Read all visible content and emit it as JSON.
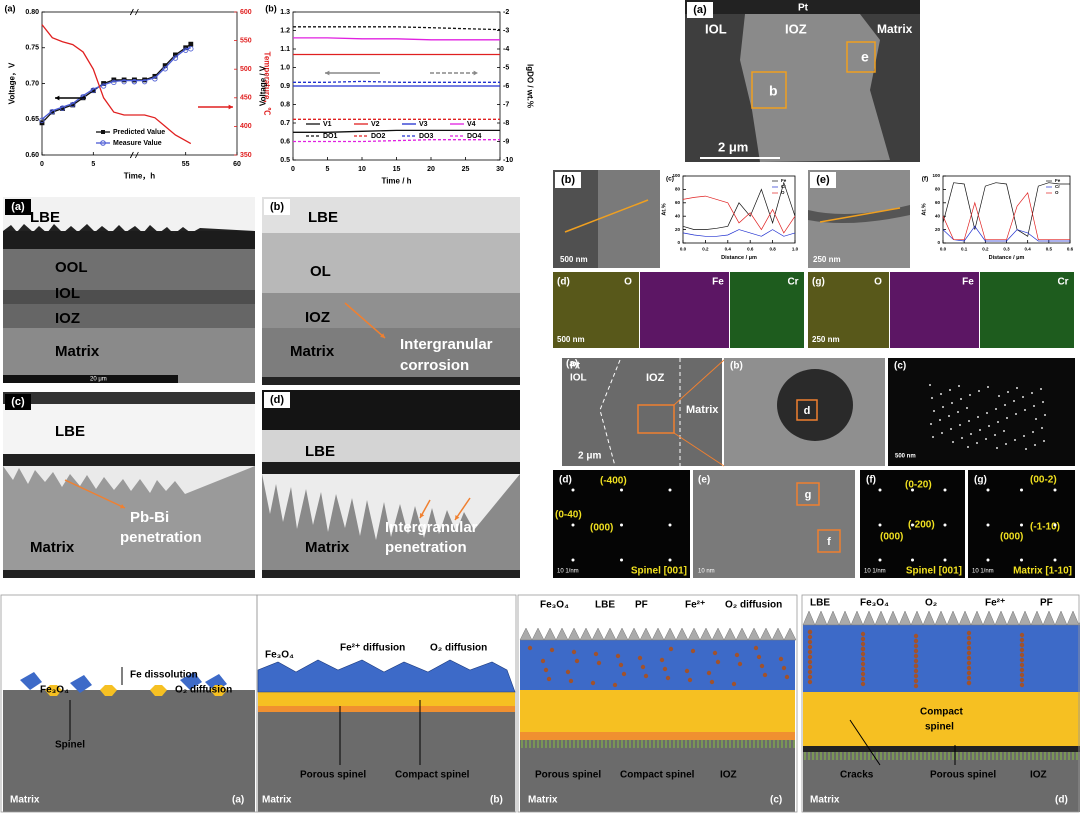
{
  "chart_data": [
    {
      "type": "line",
      "panel": "(a)",
      "xlabel": "Time，h",
      "ylabel": "Voltage，V",
      "y2label": "Temperature，℃",
      "y2color": "#e02020",
      "x": [
        0,
        1,
        2,
        3,
        4,
        5,
        6,
        7,
        8,
        9,
        50,
        51,
        52,
        53,
        54,
        55,
        55.5
      ],
      "xlim": [
        0,
        60
      ],
      "xticks": [
        0,
        5,
        55,
        60
      ],
      "xbreak": [
        9,
        50
      ],
      "ylim": [
        0.6,
        0.8
      ],
      "yticks": [
        {
          "value": 0.6,
          "label": "0.60"
        },
        {
          "value": 0.65,
          "label": "0.65"
        },
        {
          "value": 0.7,
          "label": "0.70"
        },
        {
          "value": 0.75,
          "label": "0.75"
        },
        {
          "value": 0.8,
          "label": "0.80"
        }
      ],
      "y2lim": [
        350,
        600
      ],
      "y2ticks": [
        350,
        400,
        450,
        500,
        550,
        600
      ],
      "series": [
        {
          "name": "Predicted Value",
          "color": "#111111",
          "marker": "square",
          "values": [
            0.645,
            0.66,
            0.665,
            0.67,
            0.68,
            0.69,
            0.7,
            0.705,
            0.705,
            0.705,
            0.705,
            0.705,
            0.71,
            0.725,
            0.74,
            0.75,
            0.755
          ]
        },
        {
          "name": "Measure Value",
          "color": "#4a5bd4",
          "marker": "circle",
          "values": [
            0.65,
            0.662,
            0.667,
            0.672,
            0.683,
            0.692,
            0.698,
            0.703,
            0.704,
            0.704,
            0.704,
            0.704,
            0.708,
            0.722,
            0.737,
            0.748,
            0.75
          ]
        },
        {
          "color": "#e02020",
          "axis": "y2",
          "values": [
            578,
            555,
            548,
            543,
            530,
            500,
            450,
            425,
            420,
            420,
            420,
            420,
            415,
            400,
            385,
            375,
            370
          ]
        }
      ]
    },
    {
      "type": "line",
      "panel": "(b)",
      "xlabel": "Time / h",
      "ylabel": "Voltage / V",
      "y2label": "lgDO / wt.%",
      "x": [
        0,
        5,
        10,
        15,
        20,
        25,
        30
      ],
      "xlim": [
        0,
        30
      ],
      "xticks": [
        0,
        5,
        10,
        15,
        20,
        25,
        30
      ],
      "ylim": [
        0.5,
        1.3
      ],
      "yticks": [
        0.5,
        0.6,
        0.7,
        0.8,
        0.9,
        {
          "value": 1.0,
          "label": "1.0"
        },
        1.1,
        1.2,
        1.3
      ],
      "y2lim": [
        -10,
        -2
      ],
      "y2ticks": [
        -10,
        -9,
        -8,
        -7,
        -6,
        -5,
        -4,
        -3,
        -2
      ],
      "series": [
        {
          "name": "V1",
          "color": "#111111",
          "values": [
            0.65,
            0.65,
            0.655,
            0.66,
            0.66,
            0.66,
            0.66
          ]
        },
        {
          "name": "V2",
          "color": "#e02020",
          "values": [
            1.07,
            1.07,
            1.07,
            1.07,
            1.07,
            1.07,
            1.07
          ]
        },
        {
          "name": "V3",
          "color": "#2030d0",
          "values": [
            0.9,
            0.9,
            0.9,
            0.9,
            0.9,
            0.9,
            0.9
          ]
        },
        {
          "name": "V4",
          "color": "#e020e0",
          "values": [
            1.16,
            1.16,
            1.155,
            1.155,
            1.15,
            1.15,
            1.15
          ]
        },
        {
          "name": "DO1",
          "color": "#111111",
          "dash": true,
          "axis": "y2",
          "values": [
            -2.8,
            -2.8,
            -2.8,
            -2.8,
            -2.85,
            -2.9,
            -2.95
          ]
        },
        {
          "name": "DO2",
          "color": "#e02020",
          "dash": true,
          "axis": "y2",
          "values": [
            -7.8,
            -7.8,
            -7.8,
            -7.8,
            -7.8,
            -7.8,
            -7.8
          ]
        },
        {
          "name": "DO3",
          "color": "#2030d0",
          "dash": true,
          "axis": "y2",
          "values": [
            -5.8,
            -5.8,
            -5.75,
            -5.8,
            -5.8,
            -5.8,
            -5.8
          ]
        },
        {
          "name": "DO4",
          "color": "#e020e0",
          "dash": true,
          "axis": "y2",
          "values": [
            -9.0,
            -9.0,
            -9.0,
            -8.95,
            -8.9,
            -8.9,
            -8.9
          ]
        }
      ]
    },
    {
      "type": "line",
      "panel": "(c)",
      "xlabel": "Distance / μm",
      "ylabel": "At.%",
      "x": [
        0,
        0.1,
        0.2,
        0.3,
        0.4,
        0.5,
        0.6,
        0.7,
        0.8,
        0.9,
        1.0
      ],
      "xlim": [
        0,
        1
      ],
      "xticks": [
        {
          "value": 0,
          "label": "0.0"
        },
        0.2,
        0.4,
        0.6,
        0.8,
        {
          "value": 1,
          "label": "1.0"
        }
      ],
      "ylim": [
        0,
        100
      ],
      "yticks": [
        0,
        20,
        40,
        60,
        80,
        100
      ],
      "series": [
        {
          "name": "Fe",
          "color": "#111111",
          "values": [
            25,
            20,
            20,
            22,
            25,
            60,
            40,
            80,
            30,
            90,
            40
          ]
        },
        {
          "name": "Cr",
          "color": "#2030d0",
          "values": [
            15,
            12,
            10,
            10,
            12,
            20,
            15,
            10,
            20,
            10,
            15
          ]
        },
        {
          "name": "O",
          "color": "#e02020",
          "values": [
            65,
            68,
            70,
            65,
            60,
            30,
            45,
            20,
            50,
            15,
            40
          ]
        }
      ]
    },
    {
      "type": "line",
      "panel": "(f)",
      "xlabel": "Distance / μm",
      "ylabel": "At.%",
      "x": [
        0,
        0.05,
        0.1,
        0.15,
        0.2,
        0.25,
        0.3,
        0.35,
        0.4,
        0.45,
        0.5,
        0.55,
        0.6
      ],
      "xlim": [
        0,
        0.6
      ],
      "xticks": [
        {
          "value": 0,
          "label": "0.0"
        },
        0.1,
        0.2,
        0.3,
        0.4,
        0.5,
        0.6
      ],
      "ylim": [
        0,
        100
      ],
      "yticks": [
        0,
        20,
        40,
        60,
        80,
        100
      ],
      "series": [
        {
          "name": "Fe",
          "color": "#111111",
          "values": [
            30,
            90,
            88,
            20,
            85,
            90,
            88,
            20,
            10,
            85,
            90,
            88,
            88
          ]
        },
        {
          "name": "Cr",
          "color": "#2030d0",
          "values": [
            20,
            5,
            3,
            25,
            3,
            3,
            3,
            20,
            15,
            3,
            3,
            3,
            3
          ]
        },
        {
          "name": "O",
          "color": "#e02020",
          "values": [
            40,
            5,
            5,
            60,
            5,
            5,
            5,
            55,
            75,
            5,
            5,
            5,
            5
          ]
        }
      ]
    }
  ],
  "sem_panels": [
    {
      "tag": "(a)",
      "labels": [
        "LBE",
        "OOL",
        "IOL",
        "IOZ",
        "Matrix"
      ],
      "scale": "20 μm"
    },
    {
      "tag": "(b)",
      "labels": [
        "LBE",
        "OL",
        "IOZ",
        "Matrix",
        "Intergranular",
        "corrosion"
      ]
    },
    {
      "tag": "(c)",
      "labels": [
        "LBE",
        "Pb-Bi",
        "penetration",
        "Matrix"
      ]
    },
    {
      "tag": "(d)",
      "labels": [
        "LBE",
        "Matrix",
        "Intergranular",
        "penetration"
      ]
    }
  ],
  "tem_overview": {
    "tag": "(a)",
    "labels": [
      "Pt",
      "IOL",
      "IOZ",
      "Matrix",
      "b",
      "e"
    ],
    "scale": "2 μm"
  },
  "tem_details": [
    {
      "tag": "(b)",
      "scale": "500 nm"
    },
    {
      "tag": "(e)",
      "scale": "250 nm"
    }
  ],
  "maps": [
    {
      "tag": "(d)",
      "elements": [
        "O",
        "Fe",
        "Cr"
      ],
      "scale": "500 nm"
    },
    {
      "tag": "(g)",
      "elements": [
        "O",
        "Fe",
        "Cr"
      ],
      "scale": "250 nm"
    }
  ],
  "tem_row": [
    {
      "tag": "(a)",
      "labels": [
        "Pt",
        "IOL",
        "IOZ",
        "Matrix"
      ],
      "scale": "2 μm"
    },
    {
      "tag": "(b)",
      "labels": [
        "d"
      ]
    },
    {
      "tag": "(c)",
      "scale": "500 nm"
    }
  ],
  "diffraction": [
    {
      "tag": "(d)",
      "spots": [
        "(-400)",
        "(0-40)",
        "(000)"
      ],
      "zone": "Spinel [001]",
      "scale": "10 1/nm"
    },
    {
      "tag": "(e)",
      "labels": [
        "g",
        "f"
      ],
      "scale": "10 nm"
    },
    {
      "tag": "(f)",
      "spots": [
        "(0-20)",
        "(-200)",
        "(000)"
      ],
      "zone": "Spinel [001]",
      "scale": "10 1/nm"
    },
    {
      "tag": "(g)",
      "spots": [
        "(00-2)",
        "(-1-10)",
        "(000)"
      ],
      "zone": "Matrix [1-10]",
      "scale": "10 1/nm"
    }
  ],
  "schematics": [
    {
      "tag": "(a)",
      "labels": [
        "Fe₃O₄",
        "Fe dissolution",
        "O₂ diffusion",
        "Spinel",
        "Matrix"
      ]
    },
    {
      "tag": "(b)",
      "labels": [
        "Fe₃O₄",
        "Fe²⁺ diffusion",
        "O₂ diffusion",
        "Porous spinel",
        "Compact spinel",
        "Matrix"
      ]
    },
    {
      "tag": "(c)",
      "labels": [
        "Fe₃O₄",
        "LBE",
        "PF",
        "Fe²⁺",
        "O₂ diffusion",
        "Porous spinel",
        "Compact spinel",
        "IOZ",
        "Matrix"
      ]
    },
    {
      "tag": "(d)",
      "labels": [
        "LBE",
        "Fe₃O₄",
        "O₂",
        "Fe²⁺",
        "PF",
        "Compact",
        "spinel",
        "Cracks",
        "Porous spinel",
        "IOZ",
        "Matrix"
      ]
    }
  ]
}
